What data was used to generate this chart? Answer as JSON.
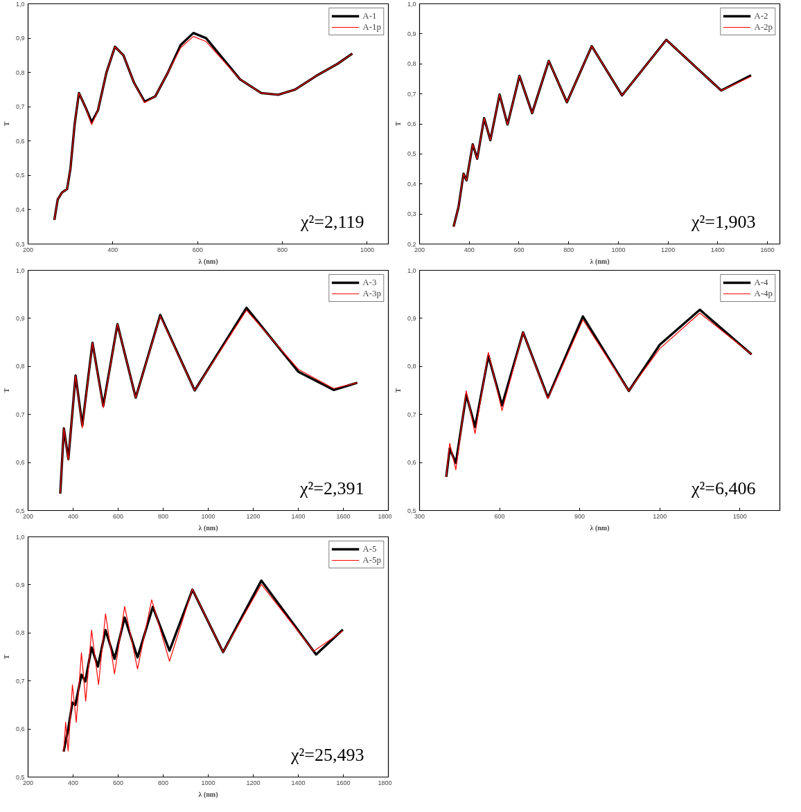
{
  "chart_data": [
    {
      "type": "line",
      "xlabel": "λ (nm)",
      "ylabel": "T",
      "xlim": [
        200,
        1050
      ],
      "ylim": [
        0.3,
        1.0
      ],
      "xticks": [
        200,
        400,
        600,
        800,
        1000
      ],
      "yticks": [
        {
          "value": 0.3,
          "label": "0,3"
        },
        {
          "value": 0.4,
          "label": "0,4"
        },
        {
          "value": 0.5,
          "label": "0,5"
        },
        {
          "value": 0.6,
          "label": "0,6"
        },
        {
          "value": 0.7,
          "label": "0,7"
        },
        {
          "value": 0.8,
          "label": "0,8"
        },
        {
          "value": 0.9,
          "label": "0,9"
        },
        {
          "value": 1.0,
          "label": "1,0"
        }
      ],
      "grid": false,
      "legend": "top right",
      "annotations": [
        "χ²=2,119"
      ],
      "x": [
        262,
        270,
        280,
        292,
        300,
        310,
        320,
        335,
        350,
        365,
        385,
        405,
        425,
        450,
        475,
        500,
        530,
        560,
        590,
        620,
        660,
        700,
        750,
        790,
        830,
        880,
        930,
        965
      ],
      "series": [
        {
          "name": "A-1",
          "color": "#000000",
          "values": [
            0.37,
            0.43,
            0.45,
            0.46,
            0.52,
            0.65,
            0.74,
            0.7,
            0.655,
            0.69,
            0.8,
            0.875,
            0.85,
            0.77,
            0.715,
            0.73,
            0.8,
            0.88,
            0.915,
            0.9,
            0.84,
            0.78,
            0.74,
            0.735,
            0.75,
            0.79,
            0.825,
            0.855
          ]
        },
        {
          "name": "A-1p",
          "color": "#ff0000",
          "values": [
            0.37,
            0.43,
            0.45,
            0.46,
            0.52,
            0.65,
            0.74,
            0.7,
            0.648,
            0.69,
            0.8,
            0.875,
            0.85,
            0.77,
            0.712,
            0.73,
            0.8,
            0.872,
            0.905,
            0.89,
            0.835,
            0.78,
            0.74,
            0.735,
            0.75,
            0.79,
            0.825,
            0.855
          ]
        }
      ]
    },
    {
      "type": "line",
      "xlabel": "λ (nm)",
      "ylabel": "T",
      "xlim": [
        200,
        1650
      ],
      "ylim": [
        0.2,
        1.0
      ],
      "xticks": [
        200,
        400,
        600,
        800,
        1000,
        1200,
        1400,
        1600
      ],
      "yticks": [
        {
          "value": 0.2,
          "label": "0,2"
        },
        {
          "value": 0.3,
          "label": "0,3"
        },
        {
          "value": 0.4,
          "label": "0,4"
        },
        {
          "value": 0.5,
          "label": "0,5"
        },
        {
          "value": 0.6,
          "label": "0,6"
        },
        {
          "value": 0.7,
          "label": "0,7"
        },
        {
          "value": 0.8,
          "label": "0,8"
        },
        {
          "value": 0.9,
          "label": "0,9"
        },
        {
          "value": 1.0,
          "label": "1,0"
        }
      ],
      "grid": false,
      "legend": "top right",
      "annotations": [
        "χ²=1,903"
      ],
      "x": [
        337,
        357,
        377,
        389,
        414,
        432,
        460,
        485,
        522,
        554,
        602,
        653,
        720,
        793,
        893,
        1015,
        1193,
        1414,
        1534
      ],
      "series": [
        {
          "name": "A-2",
          "color": "#000000",
          "values": [
            0.258,
            0.324,
            0.434,
            0.412,
            0.532,
            0.484,
            0.619,
            0.546,
            0.698,
            0.598,
            0.76,
            0.636,
            0.81,
            0.672,
            0.859,
            0.695,
            0.88,
            0.711,
            0.762
          ]
        },
        {
          "name": "A-2p",
          "color": "#ff0000",
          "values": [
            0.258,
            0.324,
            0.434,
            0.412,
            0.532,
            0.484,
            0.619,
            0.546,
            0.698,
            0.598,
            0.76,
            0.636,
            0.81,
            0.672,
            0.859,
            0.695,
            0.88,
            0.711,
            0.758
          ]
        }
      ]
    },
    {
      "type": "line",
      "xlabel": "λ (nm)",
      "ylabel": "T",
      "xlim": [
        200,
        1800
      ],
      "ylim": [
        0.5,
        1.0
      ],
      "xticks": [
        200,
        400,
        600,
        800,
        1000,
        1200,
        1400,
        1600,
        1800
      ],
      "yticks": [
        {
          "value": 0.5,
          "label": "0,5"
        },
        {
          "value": 0.6,
          "label": "0,6"
        },
        {
          "value": 0.7,
          "label": "0,7"
        },
        {
          "value": 0.8,
          "label": "0,8"
        },
        {
          "value": 0.9,
          "label": "0,9"
        },
        {
          "value": 1.0,
          "label": "1,0"
        }
      ],
      "grid": false,
      "legend": "top right",
      "annotations": [
        "χ²=2,391"
      ],
      "x": [
        343,
        359,
        379,
        411,
        441,
        486,
        534,
        597,
        678,
        787,
        940,
        1170,
        1400,
        1557,
        1662
      ],
      "series": [
        {
          "name": "A-3",
          "color": "#000000",
          "values": [
            0.535,
            0.671,
            0.607,
            0.781,
            0.677,
            0.849,
            0.718,
            0.888,
            0.735,
            0.907,
            0.75,
            0.922,
            0.789,
            0.751,
            0.766
          ]
        },
        {
          "name": "A-3p",
          "color": "#ff0000",
          "values": [
            0.535,
            0.671,
            0.605,
            0.781,
            0.672,
            0.849,
            0.714,
            0.888,
            0.735,
            0.905,
            0.75,
            0.917,
            0.794,
            0.754,
            0.766
          ]
        }
      ]
    },
    {
      "type": "line",
      "xlabel": "λ (nm)",
      "ylabel": "T",
      "xlim": [
        300,
        1650
      ],
      "ylim": [
        0.5,
        1.0
      ],
      "xticks": [
        300,
        600,
        900,
        1200,
        1500
      ],
      "yticks": [
        {
          "value": 0.5,
          "label": "0,5"
        },
        {
          "value": 0.6,
          "label": "0,6"
        },
        {
          "value": 0.7,
          "label": "0,7"
        },
        {
          "value": 0.8,
          "label": "0,8"
        },
        {
          "value": 0.9,
          "label": "0,9"
        },
        {
          "value": 1.0,
          "label": "1,0"
        }
      ],
      "grid": false,
      "legend": "top right",
      "annotations": [
        "χ²=6,406"
      ],
      "x": [
        400,
        413,
        436,
        475,
        508,
        558,
        609,
        688,
        781,
        912,
        1084,
        1200,
        1350,
        1544
      ],
      "series": [
        {
          "name": "A-4",
          "color": "#000000",
          "values": [
            0.57,
            0.629,
            0.599,
            0.741,
            0.674,
            0.822,
            0.719,
            0.871,
            0.735,
            0.904,
            0.749,
            0.845,
            0.918,
            0.825
          ]
        },
        {
          "name": "A-4p",
          "color": "#ff0000",
          "values": [
            0.57,
            0.64,
            0.585,
            0.749,
            0.66,
            0.829,
            0.708,
            0.871,
            0.733,
            0.897,
            0.749,
            0.837,
            0.911,
            0.825
          ]
        }
      ]
    },
    {
      "type": "line",
      "xlabel": "λ (nm)",
      "ylabel": "T",
      "xlim": [
        200,
        1800
      ],
      "ylim": [
        0.5,
        1.0
      ],
      "xticks": [
        200,
        400,
        600,
        800,
        1000,
        1200,
        1400,
        1600,
        1800
      ],
      "yticks": [
        {
          "value": 0.5,
          "label": "0,5"
        },
        {
          "value": 0.6,
          "label": "0,6"
        },
        {
          "value": 0.7,
          "label": "0,7"
        },
        {
          "value": 0.8,
          "label": "0,8"
        },
        {
          "value": 0.9,
          "label": "0,9"
        },
        {
          "value": 1.0,
          "label": "1,0"
        }
      ],
      "grid": false,
      "legend": "top right",
      "annotations": [
        "χ²=25,493"
      ],
      "series": [
        {
          "name": "A-5",
          "color": "#000000",
          "x": [
            358,
            378,
            397,
            410,
            437,
            454,
            482,
            510,
            544,
            584,
            629,
            686,
            754,
            828,
            930,
            1066,
            1236,
            1479,
            1598
          ],
          "values": [
            0.553,
            0.6,
            0.655,
            0.65,
            0.713,
            0.699,
            0.77,
            0.73,
            0.806,
            0.746,
            0.832,
            0.749,
            0.854,
            0.763,
            0.89,
            0.76,
            0.909,
            0.755,
            0.807
          ]
        },
        {
          "name": "A-5p",
          "color": "#ff0000",
          "x": [
            358,
            367,
            378,
            397,
            414,
            437,
            456,
            482,
            513,
            544,
            584,
            629,
            686,
            749,
            828,
            930,
            1066,
            1236,
            1468,
            1598
          ],
          "values": [
            0.553,
            0.614,
            0.554,
            0.692,
            0.614,
            0.759,
            0.658,
            0.806,
            0.692,
            0.84,
            0.715,
            0.855,
            0.725,
            0.869,
            0.741,
            0.891,
            0.76,
            0.901,
            0.762,
            0.804
          ]
        }
      ]
    }
  ]
}
